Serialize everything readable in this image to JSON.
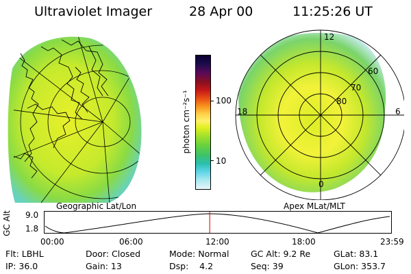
{
  "header": {
    "title": "Ultraviolet Imager",
    "date": "28 Apr 00",
    "time": "11:25:26 UT"
  },
  "left_panel": {
    "label": "Geographic Lat/Lon"
  },
  "right_panel": {
    "label": "Apex MLat/MLT",
    "mlt_labels": {
      "top": "12",
      "left": "18",
      "right": "6",
      "bottom": "0"
    },
    "lat_labels": [
      "60",
      "70",
      "80"
    ]
  },
  "colorbar": {
    "unit": "photon cm⁻²s⁻¹",
    "ticks": [
      "100",
      "10"
    ],
    "colors": [
      "#0b0030",
      "#1a0b4a",
      "#5a0a5a",
      "#8a1020",
      "#c41818",
      "#e84d14",
      "#f7931e",
      "#ffd24a",
      "#fff06a",
      "#e0f020",
      "#a6e22a",
      "#6ad23e",
      "#3cc26a",
      "#2bbfb0",
      "#5ed4e6",
      "#a8e8f0",
      "#e6f6fa"
    ]
  },
  "timeline": {
    "axis_label": "GC Alt",
    "y_ticks": [
      "9.0",
      "1.8"
    ],
    "x_ticks": [
      "00:00",
      "06:00",
      "12:00",
      "18:00",
      "23:59"
    ],
    "marker_fraction": 0.4766
  },
  "status": {
    "row1": [
      "Flt: LBHL",
      "Door: Closed",
      "Mode: Normal",
      "GC Alt: 9.2 Re",
      "GLat:  83.1"
    ],
    "row2": [
      "IP: 36.0",
      "Gain: 13",
      "Dsp:    4.2",
      "Seq: 39",
      "GLon: 353.7"
    ]
  }
}
